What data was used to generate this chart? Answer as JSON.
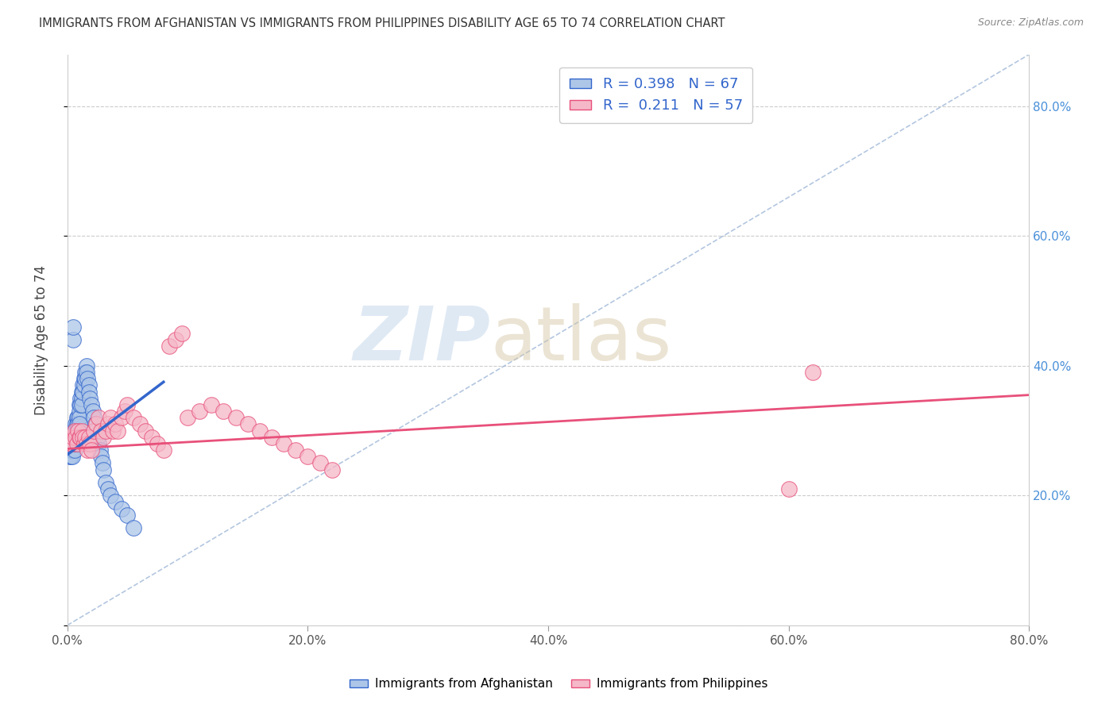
{
  "title": "IMMIGRANTS FROM AFGHANISTAN VS IMMIGRANTS FROM PHILIPPINES DISABILITY AGE 65 TO 74 CORRELATION CHART",
  "source": "Source: ZipAtlas.com",
  "ylabel": "Disability Age 65 to 74",
  "legend_afghanistan": "Immigrants from Afghanistan",
  "legend_philippines": "Immigrants from Philippines",
  "R_afghanistan": 0.398,
  "N_afghanistan": 67,
  "R_philippines": 0.211,
  "N_philippines": 57,
  "color_afghanistan": "#adc6e8",
  "color_philippines": "#f5b8c8",
  "line_color_afghanistan": "#3366cc",
  "line_color_philippines": "#e8507a",
  "xmin": 0.0,
  "xmax": 0.8,
  "ymin": 0.0,
  "ymax": 0.88,
  "afghanistan_x": [
    0.001,
    0.002,
    0.002,
    0.003,
    0.003,
    0.003,
    0.004,
    0.004,
    0.004,
    0.004,
    0.005,
    0.005,
    0.005,
    0.005,
    0.006,
    0.006,
    0.006,
    0.006,
    0.007,
    0.007,
    0.007,
    0.007,
    0.008,
    0.008,
    0.008,
    0.009,
    0.009,
    0.009,
    0.01,
    0.01,
    0.01,
    0.01,
    0.011,
    0.011,
    0.012,
    0.012,
    0.012,
    0.013,
    0.013,
    0.014,
    0.014,
    0.015,
    0.015,
    0.016,
    0.016,
    0.017,
    0.018,
    0.018,
    0.019,
    0.02,
    0.021,
    0.022,
    0.023,
    0.024,
    0.025,
    0.026,
    0.027,
    0.028,
    0.029,
    0.03,
    0.032,
    0.034,
    0.036,
    0.04,
    0.045,
    0.05,
    0.055
  ],
  "afghanistan_y": [
    0.27,
    0.26,
    0.28,
    0.27,
    0.27,
    0.26,
    0.29,
    0.28,
    0.27,
    0.26,
    0.44,
    0.46,
    0.3,
    0.29,
    0.3,
    0.29,
    0.28,
    0.27,
    0.31,
    0.3,
    0.29,
    0.28,
    0.32,
    0.31,
    0.3,
    0.32,
    0.31,
    0.3,
    0.34,
    0.33,
    0.32,
    0.31,
    0.35,
    0.34,
    0.36,
    0.35,
    0.34,
    0.37,
    0.36,
    0.38,
    0.37,
    0.39,
    0.38,
    0.4,
    0.39,
    0.38,
    0.37,
    0.36,
    0.35,
    0.34,
    0.33,
    0.32,
    0.31,
    0.3,
    0.29,
    0.28,
    0.27,
    0.26,
    0.25,
    0.24,
    0.22,
    0.21,
    0.2,
    0.19,
    0.18,
    0.17,
    0.15
  ],
  "philippines_x": [
    0.002,
    0.003,
    0.004,
    0.005,
    0.006,
    0.007,
    0.008,
    0.009,
    0.01,
    0.011,
    0.012,
    0.013,
    0.014,
    0.015,
    0.016,
    0.017,
    0.018,
    0.019,
    0.02,
    0.022,
    0.024,
    0.026,
    0.028,
    0.03,
    0.032,
    0.034,
    0.036,
    0.038,
    0.04,
    0.042,
    0.045,
    0.048,
    0.05,
    0.055,
    0.06,
    0.065,
    0.07,
    0.075,
    0.08,
    0.085,
    0.09,
    0.095,
    0.1,
    0.11,
    0.12,
    0.13,
    0.14,
    0.15,
    0.16,
    0.17,
    0.18,
    0.19,
    0.2,
    0.21,
    0.22,
    0.6,
    0.62
  ],
  "philippines_y": [
    0.29,
    0.28,
    0.28,
    0.29,
    0.3,
    0.29,
    0.28,
    0.3,
    0.29,
    0.29,
    0.3,
    0.29,
    0.28,
    0.29,
    0.28,
    0.27,
    0.29,
    0.28,
    0.27,
    0.3,
    0.31,
    0.32,
    0.3,
    0.29,
    0.3,
    0.31,
    0.32,
    0.3,
    0.31,
    0.3,
    0.32,
    0.33,
    0.34,
    0.32,
    0.31,
    0.3,
    0.29,
    0.28,
    0.27,
    0.43,
    0.44,
    0.45,
    0.32,
    0.33,
    0.34,
    0.33,
    0.32,
    0.31,
    0.3,
    0.29,
    0.28,
    0.27,
    0.26,
    0.25,
    0.24,
    0.21,
    0.39
  ],
  "yticks": [
    0.0,
    0.2,
    0.4,
    0.6,
    0.8
  ],
  "ytick_labels_right": [
    "",
    "20.0%",
    "40.0%",
    "60.0%",
    "80.0%"
  ],
  "xticks": [
    0.0,
    0.2,
    0.4,
    0.6,
    0.8
  ],
  "xtick_labels": [
    "0.0%",
    "20.0%",
    "40.0%",
    "60.0%",
    "80.0%"
  ],
  "watermark_zip": "ZIP",
  "watermark_atlas": "atlas",
  "background_color": "#ffffff",
  "grid_color": "#cccccc",
  "afg_trend_x0": 0.0,
  "afg_trend_x1": 0.08,
  "afg_trend_y0": 0.263,
  "afg_trend_y1": 0.375,
  "phi_trend_x0": 0.0,
  "phi_trend_x1": 0.8,
  "phi_trend_y0": 0.272,
  "phi_trend_y1": 0.355
}
